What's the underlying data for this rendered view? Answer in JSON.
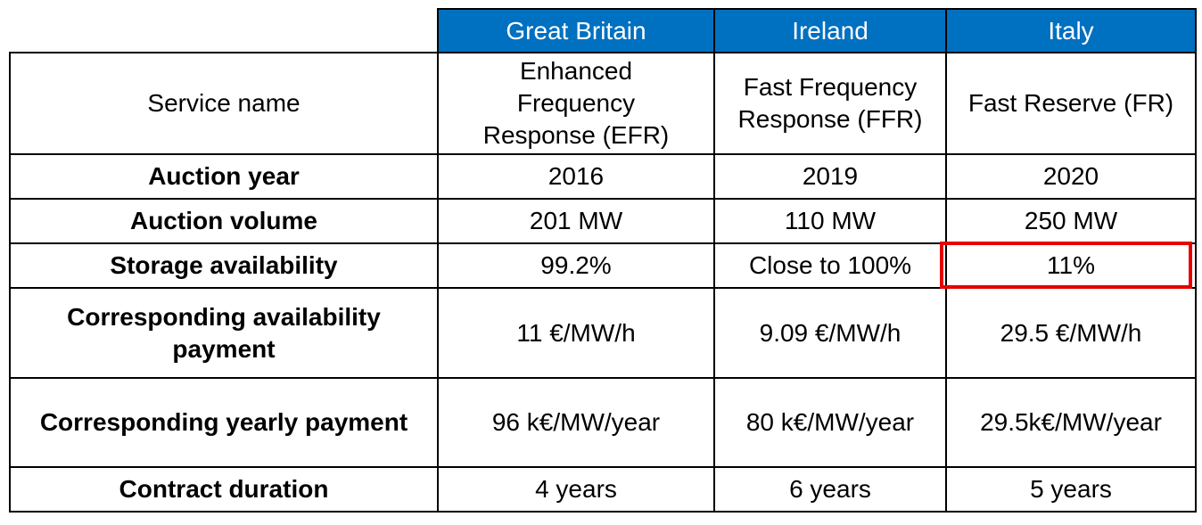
{
  "columns": [
    "Great Britain",
    "Ireland",
    "Italy"
  ],
  "rows": [
    {
      "label": "Service name",
      "values": [
        "Enhanced Frequency Response (EFR)",
        "Fast Frequency Response (FFR)",
        "Fast Reserve (FR)"
      ]
    },
    {
      "label": "Auction year",
      "values": [
        "2016",
        "2019",
        "2020"
      ]
    },
    {
      "label": "Auction volume",
      "values": [
        "201 MW",
        "110 MW",
        "250 MW"
      ]
    },
    {
      "label": "Storage availability",
      "values": [
        "99.2%",
        "Close to 100%",
        "11%"
      ]
    },
    {
      "label": "Corresponding availability payment",
      "values": [
        "11 €/MW/h",
        "9.09 €/MW/h",
        "29.5 €/MW/h"
      ]
    },
    {
      "label": "Corresponding yearly payment",
      "values": [
        "96 k€/MW/year",
        "80 k€/MW/year",
        "29.5k€/MW/year"
      ]
    },
    {
      "label": "Contract duration",
      "values": [
        "4 years",
        "6 years",
        "5 years"
      ]
    }
  ],
  "highlight_color": "#e60000",
  "header_color": "#0070c0"
}
